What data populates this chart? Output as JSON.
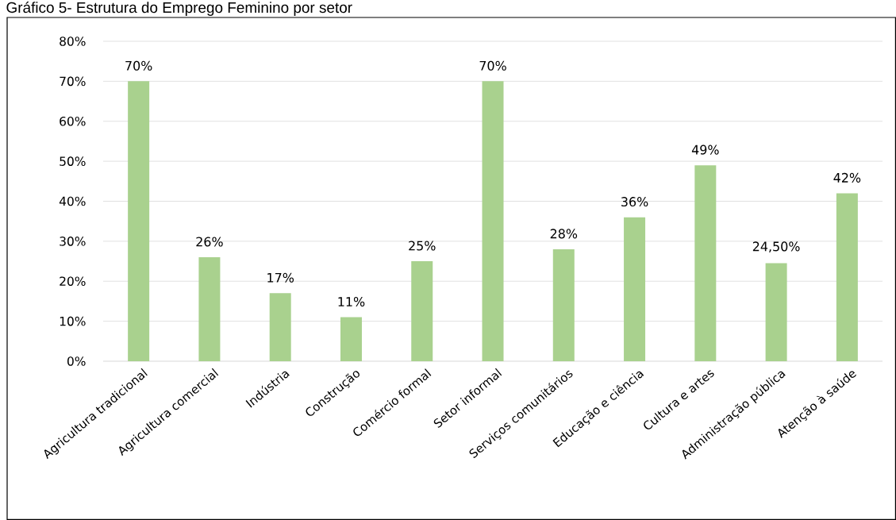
{
  "chart_data": {
    "type": "bar",
    "title": "Gráfico 5- Estrutura do Emprego Feminino por setor",
    "categories": [
      "Agricultura tradicional",
      "Agricultura comercial",
      "Indústria",
      "Construção",
      "Comércio formal",
      "Setor informal",
      "Serviços comunitários",
      "Educação e ciência",
      "Cultura e artes",
      "Administração pública",
      "Atenção à saúde"
    ],
    "values": [
      70,
      26,
      17,
      11,
      25,
      70,
      28,
      36,
      49,
      24.5,
      42
    ],
    "value_labels": [
      "70%",
      "26%",
      "17%",
      "11%",
      "25%",
      "70%",
      "28%",
      "36%",
      "49%",
      "24,50%",
      "42%"
    ],
    "color": "#a9d18e",
    "ylim": [
      0,
      80
    ],
    "yticks": [
      {
        "value": 0,
        "label": "0%"
      },
      {
        "value": 10,
        "label": "10%"
      },
      {
        "value": 20,
        "label": "20%"
      },
      {
        "value": 30,
        "label": "30%"
      },
      {
        "value": 40,
        "label": "40%"
      },
      {
        "value": 50,
        "label": "50%"
      },
      {
        "value": 60,
        "label": "60%"
      },
      {
        "value": 70,
        "label": "70%"
      },
      {
        "value": 80,
        "label": "80%"
      }
    ],
    "grid": "y"
  }
}
